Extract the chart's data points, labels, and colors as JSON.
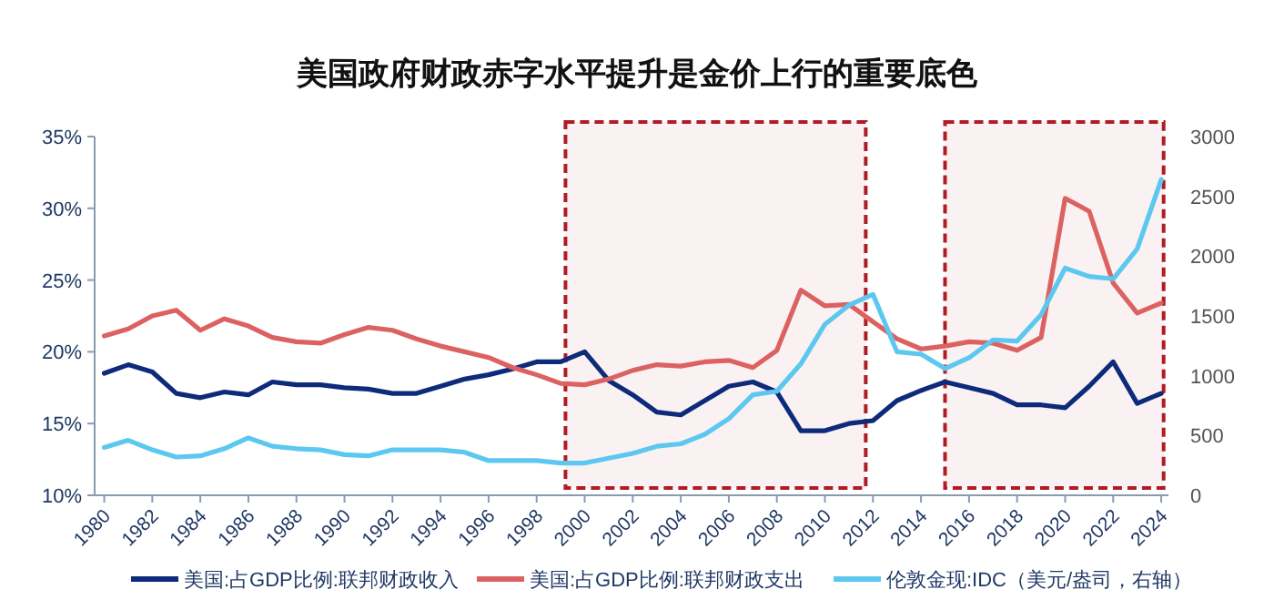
{
  "chart_data": {
    "type": "line",
    "title": "美国政府财政赤字水平提升是金价上行的重要底色",
    "x": [
      1980,
      1981,
      1982,
      1983,
      1984,
      1985,
      1986,
      1987,
      1988,
      1989,
      1990,
      1991,
      1992,
      1993,
      1994,
      1995,
      1996,
      1997,
      1998,
      1999,
      2000,
      2001,
      2002,
      2003,
      2004,
      2005,
      2006,
      2007,
      2008,
      2009,
      2010,
      2011,
      2012,
      2013,
      2014,
      2015,
      2016,
      2017,
      2018,
      2019,
      2020,
      2021,
      2022,
      2023,
      2024
    ],
    "series": [
      {
        "name": "美国:占GDP比例:联邦财政收入",
        "color": "#0e2a7a",
        "values": [
          18.5,
          19.1,
          18.6,
          17.1,
          16.8,
          17.2,
          17.0,
          17.9,
          17.7,
          17.7,
          17.5,
          17.4,
          17.1,
          17.1,
          17.6,
          18.1,
          18.4,
          18.8,
          19.3,
          19.3,
          20.0,
          18.0,
          17.0,
          15.8,
          15.6,
          16.6,
          17.6,
          17.9,
          17.2,
          14.5,
          14.5,
          15.0,
          15.2,
          16.6,
          17.3,
          17.9,
          17.5,
          17.1,
          16.3,
          16.3,
          16.1,
          17.6,
          19.3,
          16.4,
          17.1
        ]
      },
      {
        "name": "美国:占GDP比例:联邦财政支出",
        "color": "#dc6262",
        "values": [
          21.1,
          21.6,
          22.5,
          22.9,
          21.5,
          22.3,
          21.8,
          21.0,
          20.7,
          20.6,
          21.2,
          21.7,
          21.5,
          20.9,
          20.4,
          20.0,
          19.6,
          18.9,
          18.4,
          17.8,
          17.7,
          18.1,
          18.7,
          19.1,
          19.0,
          19.3,
          19.4,
          18.9,
          20.1,
          24.3,
          23.2,
          23.3,
          22.1,
          20.9,
          20.2,
          20.4,
          20.7,
          20.6,
          20.1,
          21.0,
          30.7,
          29.8,
          24.8,
          22.7,
          23.4
        ]
      },
      {
        "name": "伦敦金现:IDC（美元/盎司，右轴）",
        "color": "#5cc8f0",
        "axis": "y2",
        "values": [
          400,
          460,
          380,
          320,
          330,
          390,
          480,
          410,
          390,
          380,
          340,
          330,
          380,
          380,
          380,
          360,
          290,
          290,
          290,
          270,
          270,
          310,
          350,
          410,
          430,
          510,
          640,
          840,
          870,
          1100,
          1430,
          1590,
          1680,
          1200,
          1180,
          1060,
          1150,
          1300,
          1290,
          1510,
          1900,
          1830,
          1810,
          2060,
          2640
        ]
      }
    ],
    "xlim": [
      1979.6,
      2024.3
    ],
    "xticks": [
      1980,
      1982,
      1984,
      1986,
      1988,
      1990,
      1992,
      1994,
      1996,
      1998,
      2000,
      2002,
      2004,
      2006,
      2008,
      2010,
      2012,
      2014,
      2016,
      2018,
      2020,
      2022,
      2024
    ],
    "ylim": [
      10,
      35
    ],
    "yticks": [
      {
        "value": 10,
        "label": "10%"
      },
      {
        "value": 15,
        "label": "15%"
      },
      {
        "value": 20,
        "label": "20%"
      },
      {
        "value": 25,
        "label": "25%"
      },
      {
        "value": 30,
        "label": "30%"
      },
      {
        "value": 35,
        "label": "35%"
      }
    ],
    "y2lim": [
      0,
      3000
    ],
    "y2ticks": [
      0,
      500,
      1000,
      1500,
      2000,
      2500,
      3000
    ],
    "bands": [
      {
        "axis": "x",
        "from": 1999.2,
        "to": 2011.7,
        "color": "#b01c24"
      },
      {
        "axis": "x",
        "from": 2015.0,
        "to": 2024.1,
        "color": "#b01c24"
      }
    ],
    "grid": false,
    "legend": "bottom",
    "line_style": "solid",
    "marker": "none"
  }
}
